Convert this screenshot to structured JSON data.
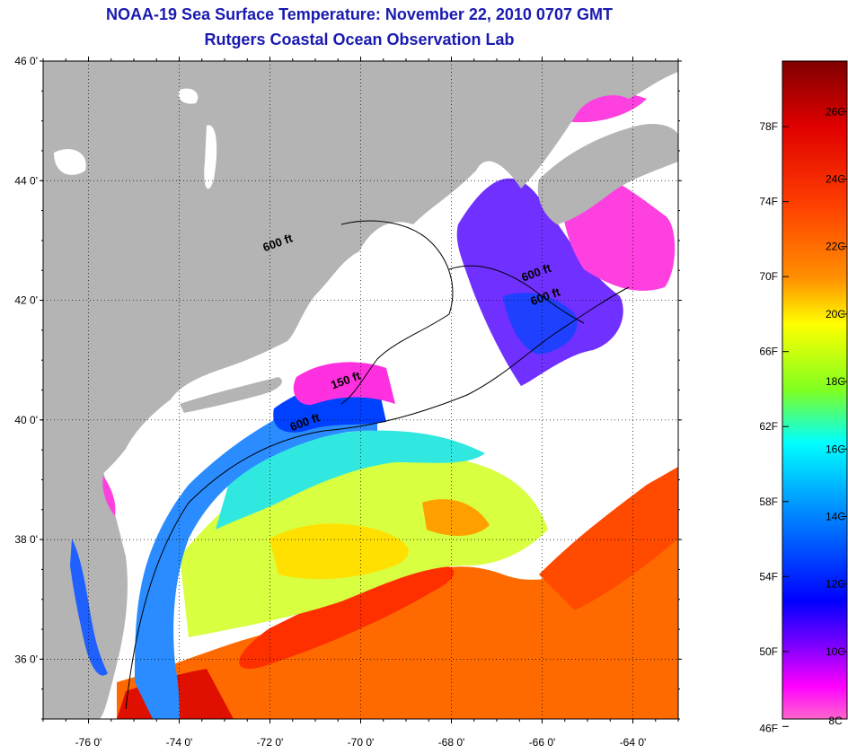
{
  "title": "NOAA-19 Sea Surface Temperature:  November 22, 2010 0707 GMT",
  "subtitle": "Rutgers Coastal Ocean Observation Lab",
  "map": {
    "lat_labels": [
      "46 0'",
      "44 0'",
      "42 0'",
      "40 0'",
      "38 0'",
      "36 0'"
    ],
    "lon_labels": [
      "-76 0'",
      "-74 0'",
      "-72 0'",
      "-70 0'",
      "-68 0'",
      "-66 0'",
      "-64 0'"
    ],
    "lat_values": [
      46,
      44,
      42,
      40,
      38,
      36
    ],
    "lon_values": [
      -76,
      -74,
      -72,
      -70,
      -68,
      -66,
      -64
    ],
    "lat_range": [
      35,
      46
    ],
    "lon_range": [
      -77,
      -63
    ],
    "contour_labels": [
      {
        "text": "600 ft",
        "lon": -71.8,
        "lat": 42.9
      },
      {
        "text": "600 ft",
        "lon": -66.1,
        "lat": 42.4
      },
      {
        "text": "600 ft",
        "lon": -65.9,
        "lat": 42.0
      },
      {
        "text": "150 ft",
        "lon": -70.3,
        "lat": 40.6
      },
      {
        "text": "600 ft",
        "lon": -71.2,
        "lat": 39.9
      }
    ],
    "colors": {
      "land": "#b4b4b4",
      "cloud": "#ffffff",
      "grid": "#000000"
    }
  },
  "colorbar": {
    "fahrenheit_labels": [
      "78F",
      "74F",
      "70F",
      "66F",
      "62F",
      "58F",
      "54F",
      "50F",
      "46F"
    ],
    "celsius_labels": [
      "26C",
      "24C",
      "22C",
      "20C",
      "18C",
      "16C",
      "14C",
      "12C",
      "10C",
      "8C"
    ],
    "range_c": [
      8,
      27.5
    ],
    "stops": [
      "#800000",
      "#ff0000",
      "#ff8000",
      "#ffff00",
      "#80ff00",
      "#00ffff",
      "#0080ff",
      "#0000ff",
      "#8000ff",
      "#ff00ff",
      "#ff66cc"
    ]
  }
}
